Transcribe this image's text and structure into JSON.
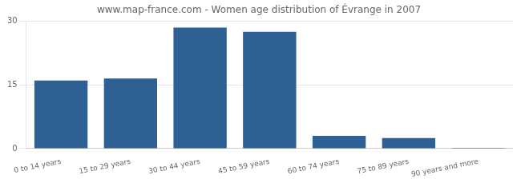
{
  "chart_data": {
    "type": "bar",
    "title": "www.map-france.com - Women age distribution of Évrange in 2007",
    "categories": [
      "0 to 14 years",
      "15 to 29 years",
      "30 to 44 years",
      "45 to 59 years",
      "60 to 74 years",
      "75 to 89 years",
      "90 years and more"
    ],
    "values": [
      16.0,
      16.5,
      28.5,
      27.5,
      3.0,
      2.5,
      0.2
    ],
    "color": "#2e6094",
    "ylim": [
      0,
      30
    ],
    "yticks": [
      0,
      15,
      30
    ],
    "grid": true
  }
}
